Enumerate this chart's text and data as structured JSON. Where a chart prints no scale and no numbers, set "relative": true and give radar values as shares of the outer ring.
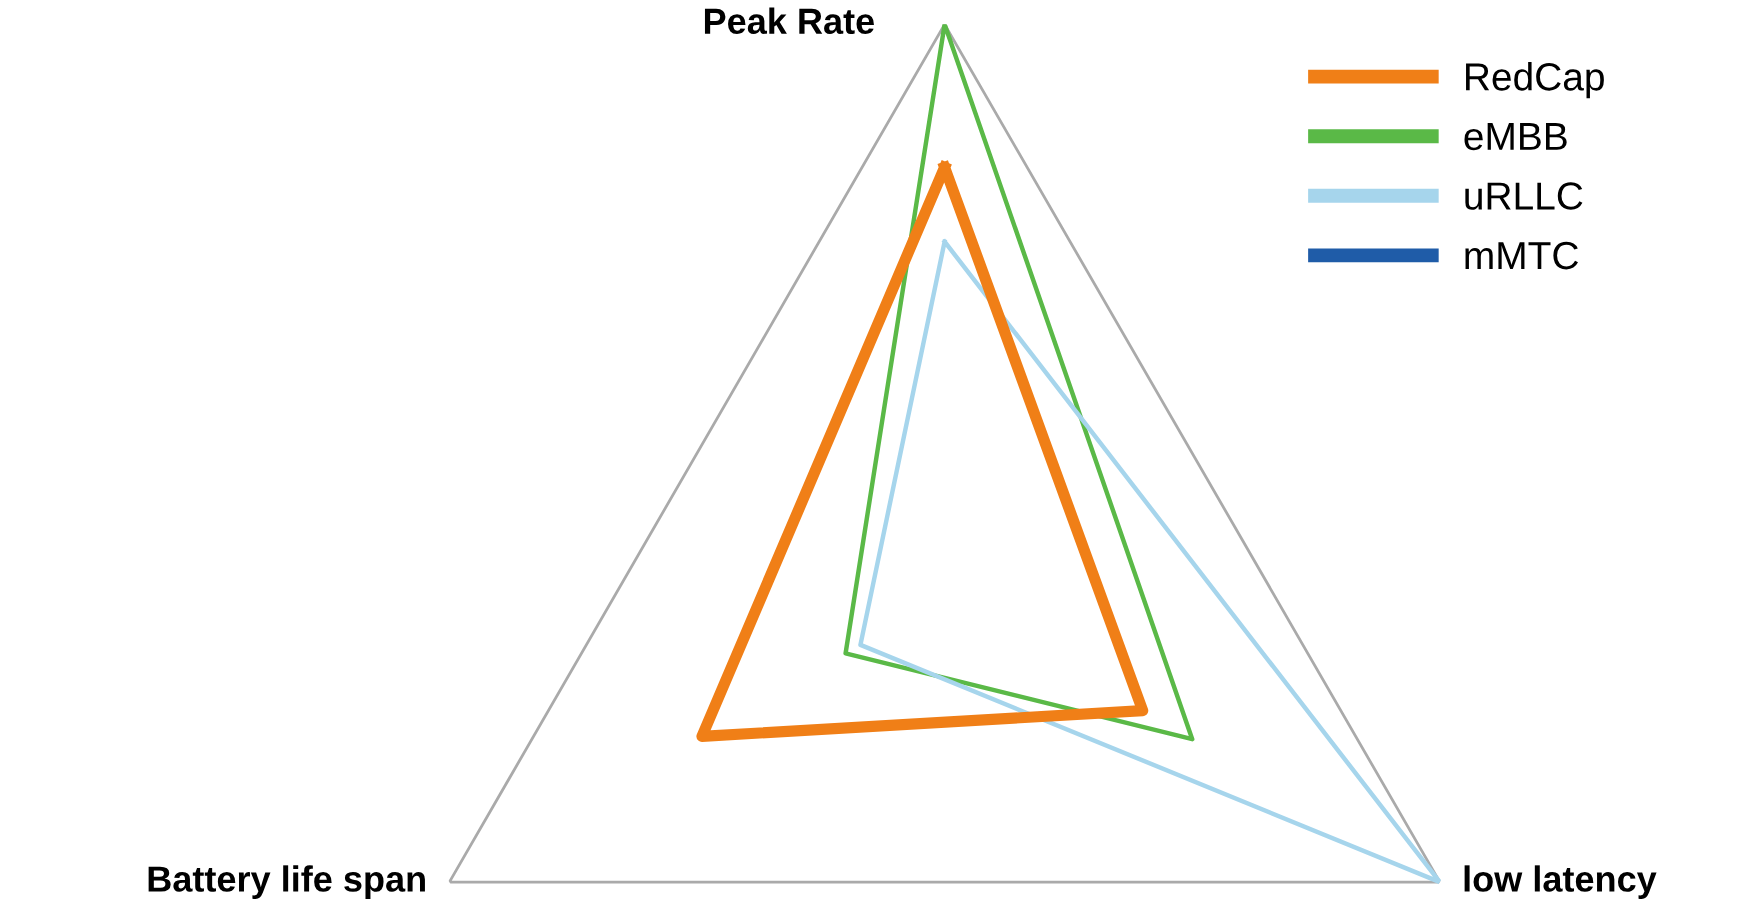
{
  "chart_data": {
    "type": "radar",
    "relative": true,
    "categories": [
      "Peak Rate",
      "low latency",
      "Battery life span"
    ],
    "series": [
      {
        "name": "RedCap",
        "color": "#f07f17",
        "values": [
          0.75,
          0.4,
          0.49
        ]
      },
      {
        "name": "eMBB",
        "color": "#5ab947",
        "values": [
          1.0,
          0.5,
          0.2
        ]
      },
      {
        "name": "uRLLC",
        "color": "#a6d5ec",
        "values": [
          0.62,
          1.0,
          0.17
        ]
      },
      {
        "name": "mMTC",
        "color": "#1f5ca8",
        "values": [
          null,
          null,
          null
        ]
      }
    ],
    "legend": "top right"
  }
}
